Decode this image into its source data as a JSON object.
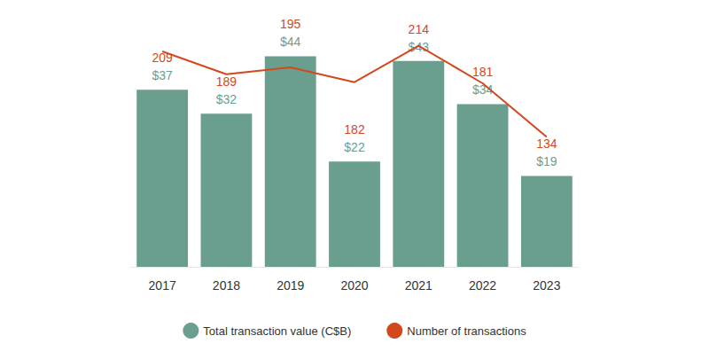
{
  "chart_data": {
    "type": "bar",
    "categories": [
      "2017",
      "2018",
      "2019",
      "2020",
      "2021",
      "2022",
      "2023"
    ],
    "series": [
      {
        "name": "Total transaction value (C$B)",
        "type": "bar",
        "color": "#6a9e8f",
        "values": [
          37,
          32,
          44,
          22,
          43,
          34,
          19
        ],
        "value_labels": [
          "$37",
          "$32",
          "$44",
          "$22",
          "$43",
          "$34",
          "$19"
        ]
      },
      {
        "name": "Number of transactions",
        "type": "line",
        "axis": "y2",
        "color": "#d4471c",
        "values": [
          209,
          189,
          195,
          182,
          214,
          181,
          134
        ]
      }
    ],
    "ylim": [
      0,
      50
    ],
    "yticks": [
      0,
      50
    ],
    "y2lim": [
      20,
      230
    ],
    "y2ticks": [
      20,
      230
    ],
    "data_labels": true,
    "tick_labels": "x",
    "legend": "bottom",
    "grid": false
  }
}
